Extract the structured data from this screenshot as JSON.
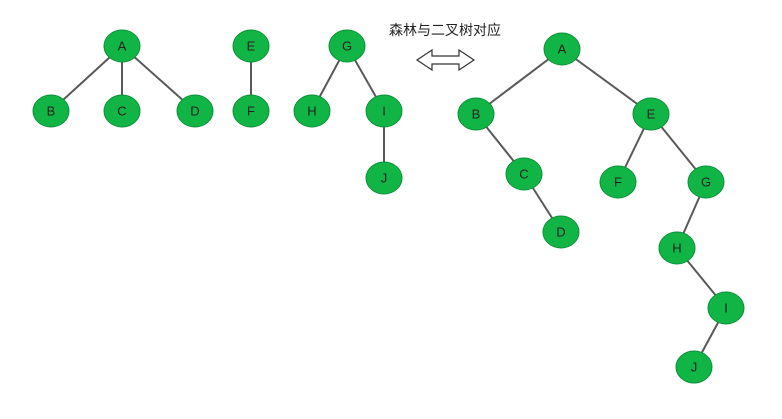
{
  "caption": "森林与二叉树对应",
  "colors": {
    "node_fill": "#11B546",
    "node_stroke": "#0E8F3A",
    "edge": "#595959"
  },
  "forest": {
    "nodes": [
      {
        "id": "fA",
        "label": "A"
      },
      {
        "id": "fB",
        "label": "B"
      },
      {
        "id": "fC",
        "label": "C"
      },
      {
        "id": "fD",
        "label": "D"
      },
      {
        "id": "fE",
        "label": "E"
      },
      {
        "id": "fF",
        "label": "F"
      },
      {
        "id": "fG",
        "label": "G"
      },
      {
        "id": "fH",
        "label": "H"
      },
      {
        "id": "fI",
        "label": "I"
      },
      {
        "id": "fJ",
        "label": "J"
      }
    ],
    "edges": [
      [
        "fA",
        "fB"
      ],
      [
        "fA",
        "fC"
      ],
      [
        "fA",
        "fD"
      ],
      [
        "fE",
        "fF"
      ],
      [
        "fG",
        "fH"
      ],
      [
        "fG",
        "fI"
      ],
      [
        "fI",
        "fJ"
      ]
    ]
  },
  "binary_tree": {
    "nodes": [
      {
        "id": "bA",
        "label": "A"
      },
      {
        "id": "bB",
        "label": "B"
      },
      {
        "id": "bC",
        "label": "C"
      },
      {
        "id": "bD",
        "label": "D"
      },
      {
        "id": "bE",
        "label": "E"
      },
      {
        "id": "bF",
        "label": "F"
      },
      {
        "id": "bG",
        "label": "G"
      },
      {
        "id": "bH",
        "label": "H"
      },
      {
        "id": "bI",
        "label": "I"
      },
      {
        "id": "bJ",
        "label": "J"
      }
    ],
    "edges": [
      [
        "bA",
        "bB"
      ],
      [
        "bA",
        "bE"
      ],
      [
        "bB",
        "bC"
      ],
      [
        "bC",
        "bD"
      ],
      [
        "bE",
        "bF"
      ],
      [
        "bE",
        "bG"
      ],
      [
        "bG",
        "bH"
      ],
      [
        "bH",
        "bI"
      ],
      [
        "bI",
        "bJ"
      ]
    ]
  }
}
